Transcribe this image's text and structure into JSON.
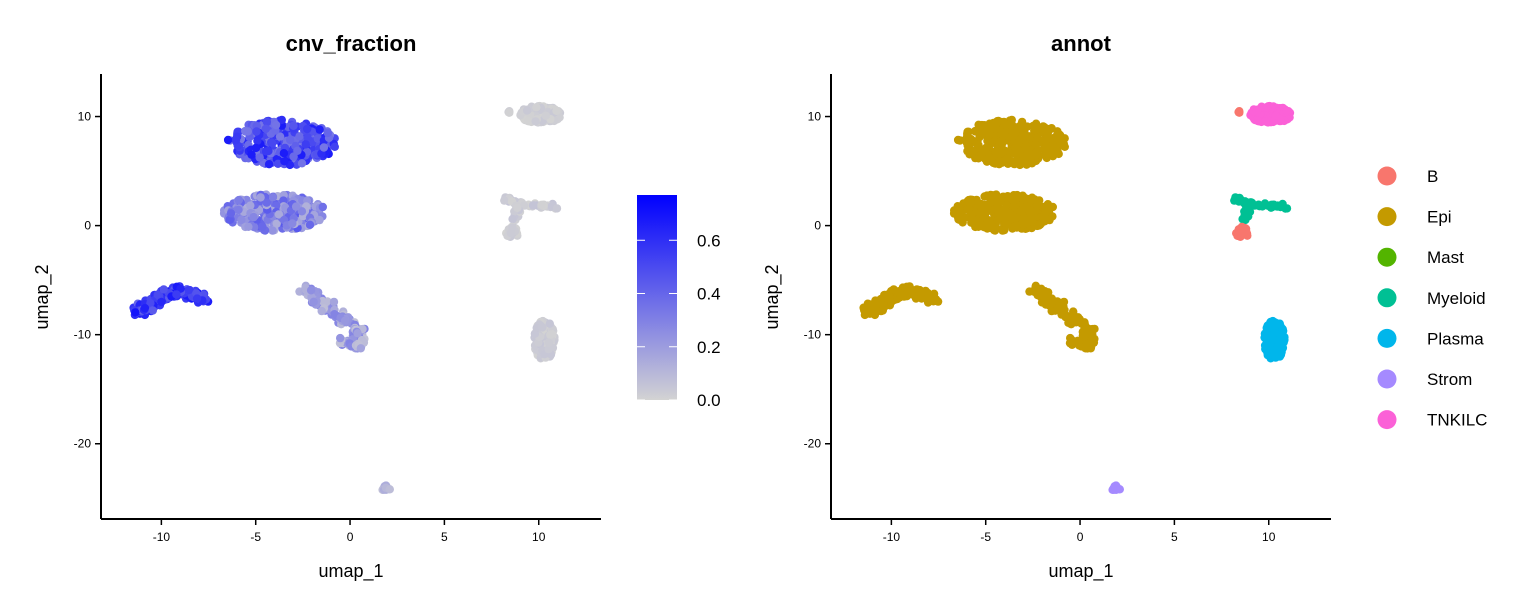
{
  "chart_data": [
    {
      "type": "scatter",
      "title": "cnv_fraction",
      "xlabel": "umap_1",
      "ylabel": "umap_2",
      "xlim": [
        -13.2,
        13.3
      ],
      "ylim": [
        -26.9,
        13.9
      ],
      "xticks": [
        -10,
        -5,
        0,
        5,
        10
      ],
      "yticks": [
        -20,
        -10,
        0,
        10
      ],
      "xtick_labels": [
        "-10",
        "-5",
        "0",
        "5",
        "10"
      ],
      "ytick_labels": [
        "-20",
        "-10",
        "0",
        "10"
      ],
      "color_by": "cnv_fraction",
      "colorbar": {
        "min": 0.0,
        "max": 0.77,
        "low_color": "#d3d3d3",
        "high_color": "#0000ff",
        "ticks": [
          0.0,
          0.2,
          0.4,
          0.6
        ],
        "tick_labels": [
          "0.0",
          "0.2",
          "0.4",
          "0.6"
        ]
      },
      "clusters": [
        {
          "annot": "Epi",
          "shape": "blob",
          "center": [
            -3.6,
            7.6
          ],
          "radii": [
            2.9,
            2.1
          ],
          "points": 320,
          "value_range": [
            0.32,
            0.68
          ]
        },
        {
          "annot": "Epi",
          "shape": "blob",
          "center": [
            -4.0,
            1.2
          ],
          "radii": [
            2.7,
            1.7
          ],
          "points": 300,
          "value_range": [
            0.12,
            0.45
          ]
        },
        {
          "annot": "Epi",
          "shape": "path",
          "path": [
            [
              -11.3,
              -8.0
            ],
            [
              -10.6,
              -7.1
            ],
            [
              -9.6,
              -6.2
            ],
            [
              -9.0,
              -6.0
            ],
            [
              -8.3,
              -6.4
            ],
            [
              -7.8,
              -6.6
            ]
          ],
          "width": 0.5,
          "points": 160,
          "value_range": [
            0.4,
            0.7
          ]
        },
        {
          "annot": "Epi",
          "shape": "path",
          "path": [
            [
              -2.3,
              -5.8
            ],
            [
              -1.7,
              -6.9
            ],
            [
              -0.6,
              -8.3
            ],
            [
              0.3,
              -9.3
            ],
            [
              0.6,
              -10.5
            ]
          ],
          "width": 0.5,
          "points": 110,
          "value_range": [
            0.05,
            0.3
          ]
        },
        {
          "annot": "Epi",
          "shape": "path",
          "path": [
            [
              -0.6,
              -10.6
            ],
            [
              0.0,
              -10.9
            ],
            [
              0.7,
              -11.1
            ]
          ],
          "width": 0.3,
          "points": 25,
          "value_range": [
            0.05,
            0.3
          ]
        },
        {
          "annot": "TNKILC",
          "shape": "blob",
          "center": [
            10.1,
            10.2
          ],
          "radii": [
            1.1,
            0.8
          ],
          "points": 140,
          "value_range": [
            0.0,
            0.04
          ]
        },
        {
          "annot": "B",
          "shape": "point",
          "center": [
            8.4,
            10.4
          ],
          "radii": [
            0.1,
            0.1
          ],
          "points": 3,
          "value_range": [
            0.0,
            0.03
          ]
        },
        {
          "annot": "Myeloid",
          "shape": "path",
          "path": [
            [
              8.3,
              2.4
            ],
            [
              9.0,
              2.0
            ],
            [
              10.0,
              1.8
            ],
            [
              11.0,
              1.7
            ]
          ],
          "width": 0.25,
          "points": 50,
          "value_range": [
            0.0,
            0.06
          ]
        },
        {
          "annot": "Myeloid",
          "shape": "path",
          "path": [
            [
              9.0,
              2.0
            ],
            [
              8.8,
              0.5
            ]
          ],
          "width": 0.2,
          "points": 12,
          "value_range": [
            0.0,
            0.06
          ]
        },
        {
          "annot": "B",
          "shape": "blob",
          "center": [
            8.6,
            -0.6
          ],
          "radii": [
            0.35,
            0.55
          ],
          "points": 20,
          "value_range": [
            0.0,
            0.04
          ]
        },
        {
          "annot": "Plasma",
          "shape": "blob",
          "center": [
            10.3,
            -10.5
          ],
          "radii": [
            0.55,
            1.8
          ],
          "points": 180,
          "value_range": [
            0.0,
            0.05
          ]
        },
        {
          "annot": "Strom",
          "shape": "path",
          "path": [
            [
              1.6,
              -24.3
            ],
            [
              2.1,
              -23.9
            ]
          ],
          "width": 0.25,
          "points": 15,
          "value_range": [
            0.06,
            0.14
          ]
        }
      ]
    },
    {
      "type": "scatter",
      "title": "annot",
      "xlabel": "umap_1",
      "ylabel": "umap_2",
      "xlim": [
        -13.2,
        13.3
      ],
      "ylim": [
        -26.9,
        13.9
      ],
      "xticks": [
        -10,
        -5,
        0,
        5,
        10
      ],
      "yticks": [
        -20,
        -10,
        0,
        10
      ],
      "xtick_labels": [
        "-10",
        "-5",
        "0",
        "5",
        "10"
      ],
      "ytick_labels": [
        "-20",
        "-10",
        "0",
        "10"
      ],
      "color_by": "annot",
      "legend": [
        {
          "name": "B",
          "color": "#f8766d"
        },
        {
          "name": "Epi",
          "color": "#c49a00"
        },
        {
          "name": "Mast",
          "color": "#53b400"
        },
        {
          "name": "Myeloid",
          "color": "#00c094"
        },
        {
          "name": "Plasma",
          "color": "#00b6eb"
        },
        {
          "name": "Strom",
          "color": "#a58aff"
        },
        {
          "name": "TNKILC",
          "color": "#fb61d7"
        }
      ],
      "legend_position": "right"
    }
  ]
}
